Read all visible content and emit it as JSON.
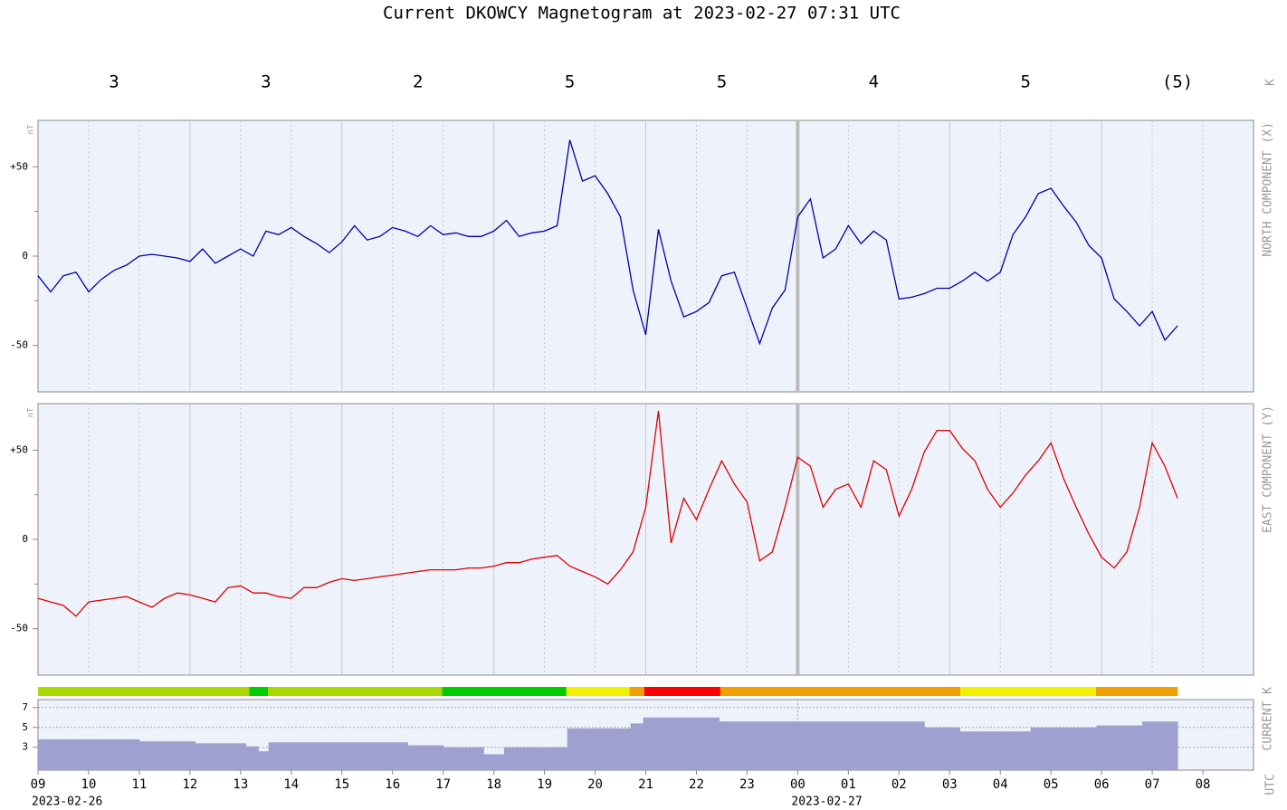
{
  "title": "Current DKOWCY Magnetogram at 2023-02-27 07:31 UTC",
  "xaxis": {
    "label": "UTC",
    "xlim": [
      9,
      33
    ],
    "xticks": [
      {
        "value": 9,
        "label": "09"
      },
      10,
      11,
      12,
      13,
      14,
      15,
      16,
      17,
      18,
      19,
      20,
      21,
      22,
      23,
      {
        "value": 24,
        "label": "00"
      },
      {
        "value": 25,
        "label": "01"
      },
      {
        "value": 26,
        "label": "02"
      },
      {
        "value": 27,
        "label": "03"
      },
      {
        "value": 28,
        "label": "04"
      },
      {
        "value": 29,
        "label": "05"
      },
      {
        "value": 30,
        "label": "06"
      },
      {
        "value": 31,
        "label": "07"
      },
      {
        "value": 32,
        "label": "08"
      }
    ],
    "dates": [
      {
        "text": "2023-02-26",
        "x": 9
      },
      {
        "text": "2023-02-27",
        "x": 24
      }
    ]
  },
  "k_index": {
    "label": "K",
    "x": [
      10.5,
      13.5,
      16.5,
      19.5,
      22.5,
      25.5,
      28.5,
      31.5
    ],
    "values": [
      3,
      3,
      2,
      5,
      5,
      4,
      5,
      5
    ],
    "value_labels": [
      "3",
      "3",
      "2",
      "5",
      "5",
      "4",
      "5",
      "(5)"
    ]
  },
  "chart_data": [
    {
      "type": "line",
      "side_label": "NORTH COMPONENT (X)",
      "unit": "nT",
      "color": "#0000aa",
      "ylim": [
        -76,
        76
      ],
      "yticks": [
        {
          "value": -50,
          "label": "-50"
        },
        0,
        {
          "value": 50,
          "label": "+50"
        }
      ],
      "yminorticks": [
        -25,
        25
      ],
      "x": [
        9,
        9.25,
        9.5,
        9.75,
        10,
        10.25,
        10.5,
        10.75,
        11,
        11.25,
        11.5,
        11.75,
        12,
        12.25,
        12.5,
        12.75,
        13,
        13.25,
        13.5,
        13.75,
        14,
        14.25,
        14.5,
        14.75,
        15,
        15.25,
        15.5,
        15.75,
        16,
        16.25,
        16.5,
        16.75,
        17,
        17.25,
        17.5,
        17.75,
        18,
        18.25,
        18.5,
        18.75,
        19,
        19.25,
        19.5,
        19.75,
        20,
        20.25,
        20.5,
        20.75,
        21,
        21.25,
        21.5,
        21.75,
        22,
        22.25,
        22.5,
        22.75,
        23,
        23.25,
        23.5,
        23.75,
        24,
        24.25,
        24.5,
        24.75,
        25,
        25.25,
        25.5,
        25.75,
        26,
        26.25,
        26.5,
        26.75,
        27,
        27.25,
        27.5,
        27.75,
        28,
        28.25,
        28.5,
        28.75,
        29,
        29.25,
        29.5,
        29.75,
        30,
        30.25,
        30.5,
        30.75,
        31,
        31.25,
        31.5
      ],
      "values": [
        -11,
        -20,
        -11,
        -9,
        -20,
        -13,
        -8,
        -5,
        0,
        1,
        0,
        -1,
        -3,
        4,
        -4,
        0,
        4,
        0,
        14,
        12,
        16,
        11,
        7,
        2,
        8,
        17,
        9,
        11,
        16,
        14,
        11,
        17,
        12,
        13,
        11,
        11,
        14,
        20,
        11,
        13,
        14,
        17,
        65,
        42,
        45,
        35,
        22,
        -19,
        -44,
        15,
        -14,
        -34,
        -31,
        -26,
        -11,
        -9,
        -29,
        -49,
        -29,
        -19,
        22,
        32,
        -1,
        4,
        17,
        7,
        14,
        9,
        -24,
        -23,
        -21,
        -18,
        -18,
        -14,
        -9,
        -14,
        -9,
        12,
        22,
        35,
        38,
        28,
        19,
        6,
        -1,
        -24,
        -31,
        -39,
        -31,
        -47,
        -39
      ]
    },
    {
      "type": "line",
      "side_label": "EAST COMPONENT (Y)",
      "unit": "nT",
      "color": "#dd0000",
      "ylim": [
        -76,
        76
      ],
      "yticks": [
        {
          "value": -50,
          "label": "-50"
        },
        0,
        {
          "value": 50,
          "label": "+50"
        }
      ],
      "yminorticks": [
        -25,
        25
      ],
      "x": [
        9,
        9.25,
        9.5,
        9.75,
        10,
        10.25,
        10.5,
        10.75,
        11,
        11.25,
        11.5,
        11.75,
        12,
        12.25,
        12.5,
        12.75,
        13,
        13.25,
        13.5,
        13.75,
        14,
        14.25,
        14.5,
        14.75,
        15,
        15.25,
        15.5,
        15.75,
        16,
        16.25,
        16.5,
        16.75,
        17,
        17.25,
        17.5,
        17.75,
        18,
        18.25,
        18.5,
        18.75,
        19,
        19.25,
        19.5,
        19.75,
        20,
        20.25,
        20.5,
        20.75,
        21,
        21.25,
        21.5,
        21.75,
        22,
        22.25,
        22.5,
        22.75,
        23,
        23.25,
        23.5,
        23.75,
        24,
        24.25,
        24.5,
        24.75,
        25,
        25.25,
        25.5,
        25.75,
        26,
        26.25,
        26.5,
        26.75,
        27,
        27.25,
        27.5,
        27.75,
        28,
        28.25,
        28.5,
        28.75,
        29,
        29.25,
        29.5,
        29.75,
        30,
        30.25,
        30.5,
        30.75,
        31,
        31.25,
        31.5
      ],
      "values": [
        -33,
        -35,
        -37,
        -43,
        -35,
        -34,
        -33,
        -32,
        -35,
        -38,
        -33,
        -30,
        -31,
        -33,
        -35,
        -27,
        -26,
        -30,
        -30,
        -32,
        -33,
        -27,
        -27,
        -24,
        -22,
        -23,
        -22,
        -21,
        -20,
        -19,
        -18,
        -17,
        -17,
        -17,
        -16,
        -16,
        -15,
        -13,
        -13,
        -11,
        -10,
        -9,
        -15,
        -18,
        -21,
        -25,
        -17,
        -7,
        18,
        72,
        -2,
        23,
        11,
        28,
        44,
        31,
        21,
        -12,
        -7,
        18,
        46,
        41,
        18,
        28,
        31,
        18,
        44,
        39,
        13,
        28,
        49,
        61,
        61,
        51,
        44,
        28,
        18,
        26,
        36,
        44,
        54,
        34,
        18,
        3,
        -10,
        -16,
        -7,
        18,
        54,
        41,
        23
      ]
    },
    {
      "type": "step-area",
      "side_label": "CURRENT K",
      "color": "#a0a0d0",
      "ylim": [
        0.7,
        7.8
      ],
      "yticks": [
        3,
        5,
        7
      ],
      "steps": [
        {
          "start": 9,
          "end": 11.0,
          "value": 3.8
        },
        {
          "start": 11.0,
          "end": 12.1,
          "value": 3.6
        },
        {
          "start": 12.1,
          "end": 13.1,
          "value": 3.4
        },
        {
          "start": 13.1,
          "end": 13.35,
          "value": 3.1
        },
        {
          "start": 13.35,
          "end": 13.55,
          "value": 2.6
        },
        {
          "start": 13.55,
          "end": 16.3,
          "value": 3.5
        },
        {
          "start": 16.3,
          "end": 17.0,
          "value": 3.2
        },
        {
          "start": 17.0,
          "end": 17.8,
          "value": 3.0
        },
        {
          "start": 17.8,
          "end": 18.2,
          "value": 2.3
        },
        {
          "start": 18.2,
          "end": 19.45,
          "value": 3.0
        },
        {
          "start": 19.45,
          "end": 20.7,
          "value": 4.9
        },
        {
          "start": 20.7,
          "end": 20.95,
          "value": 5.4
        },
        {
          "start": 20.95,
          "end": 22.45,
          "value": 6.0
        },
        {
          "start": 22.45,
          "end": 26.5,
          "value": 5.6
        },
        {
          "start": 26.5,
          "end": 27.2,
          "value": 5.0
        },
        {
          "start": 27.2,
          "end": 28.6,
          "value": 4.6
        },
        {
          "start": 28.6,
          "end": 29.9,
          "value": 5.0
        },
        {
          "start": 29.9,
          "end": 30.8,
          "value": 5.2
        },
        {
          "start": 30.8,
          "end": 31.5,
          "value": 5.6
        }
      ],
      "kbar": [
        {
          "start": 9,
          "end": 13.17,
          "color": "#a8d800"
        },
        {
          "start": 13.17,
          "end": 13.54,
          "color": "#00cc00"
        },
        {
          "start": 13.54,
          "end": 16.98,
          "color": "#a8d800"
        },
        {
          "start": 16.98,
          "end": 19.43,
          "color": "#00cc00"
        },
        {
          "start": 19.43,
          "end": 20.68,
          "color": "#f0f000"
        },
        {
          "start": 20.68,
          "end": 20.97,
          "color": "#f0a000"
        },
        {
          "start": 20.97,
          "end": 22.47,
          "color": "#ff0000"
        },
        {
          "start": 22.47,
          "end": 27.21,
          "color": "#f0a000"
        },
        {
          "start": 27.21,
          "end": 29.89,
          "color": "#f0f000"
        },
        {
          "start": 29.89,
          "end": 31.5,
          "color": "#f0a000"
        }
      ]
    }
  ]
}
